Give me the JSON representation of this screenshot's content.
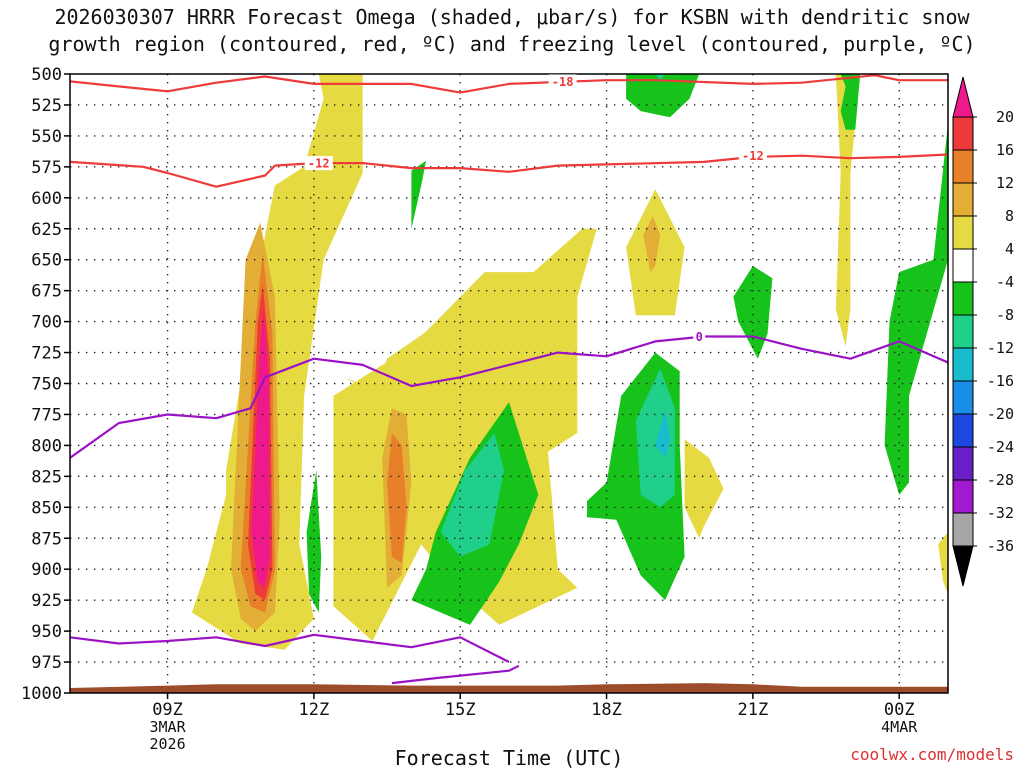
{
  "chart_data": {
    "type": "time-height contour",
    "title_line1": "2026030307 HRRR Forecast Omega (shaded, μbar/s) for KSBN with dendritic snow",
    "title_line2": "growth region (contoured, red, ºC) and freezing level (contoured, purple, ºC)",
    "xlabel": "Forecast Time (UTC)",
    "credit": "coolwx.com/models",
    "y_levels": [
      500,
      525,
      550,
      575,
      600,
      625,
      650,
      675,
      700,
      725,
      750,
      775,
      800,
      825,
      850,
      875,
      900,
      925,
      950,
      975,
      1000
    ],
    "ylim": [
      500,
      1000
    ],
    "x_hours_range": [
      7,
      25
    ],
    "x_ticks": [
      {
        "hour": 9,
        "lines": [
          "09Z",
          "3MAR",
          "2026"
        ]
      },
      {
        "hour": 12,
        "lines": [
          "12Z"
        ]
      },
      {
        "hour": 15,
        "lines": [
          "15Z"
        ]
      },
      {
        "hour": 18,
        "lines": [
          "18Z"
        ]
      },
      {
        "hour": 21,
        "lines": [
          "21Z"
        ]
      },
      {
        "hour": 24,
        "lines": [
          "00Z",
          "4MAR"
        ]
      }
    ],
    "colorbar": {
      "labels": [
        "20",
        "16",
        "12",
        "8",
        "4",
        "-4",
        "-8",
        "-12",
        "-16",
        "-20",
        "-24",
        "-28",
        "-32",
        "-36"
      ],
      "bins": [
        {
          "lo": 20,
          "hi": 24,
          "color": "#ee1a8c"
        },
        {
          "lo": 16,
          "hi": 20,
          "color": "#ee3a3a"
        },
        {
          "lo": 12,
          "hi": 16,
          "color": "#e8802a"
        },
        {
          "lo": 8,
          "hi": 12,
          "color": "#e3ae36"
        },
        {
          "lo": 4,
          "hi": 8,
          "color": "#e6da43"
        },
        {
          "lo": -4,
          "hi": 4,
          "color": "#ffffff"
        },
        {
          "lo": -8,
          "hi": -4,
          "color": "#17c21b"
        },
        {
          "lo": -12,
          "hi": -8,
          "color": "#1fcf8a"
        },
        {
          "lo": -16,
          "hi": -12,
          "color": "#18bccc"
        },
        {
          "lo": -20,
          "hi": -16,
          "color": "#1a8ee6"
        },
        {
          "lo": -24,
          "hi": -20,
          "color": "#1c48de"
        },
        {
          "lo": -28,
          "hi": -24,
          "color": "#6a1ec8"
        },
        {
          "lo": -32,
          "hi": -28,
          "color": "#a11ad0"
        },
        {
          "lo": -36,
          "hi": -32,
          "color": "#a6a6a6"
        }
      ]
    },
    "contour_labels": {
      "dgz_top": "-18",
      "dgz_bottom": "-12",
      "freezing": "0"
    },
    "dgz_top_line": [
      [
        7,
        506
      ],
      [
        8.5,
        512
      ],
      [
        9,
        514
      ],
      [
        10,
        507
      ],
      [
        11,
        502
      ],
      [
        12,
        508
      ],
      [
        14,
        508
      ],
      [
        15,
        515
      ],
      [
        16,
        508
      ],
      [
        18,
        505
      ],
      [
        19,
        505
      ],
      [
        21,
        508
      ],
      [
        22,
        507
      ],
      [
        23.5,
        501
      ],
      [
        24,
        505
      ],
      [
        25,
        505
      ]
    ],
    "dgz_bottom_line": [
      [
        7,
        571
      ],
      [
        8.5,
        575
      ],
      [
        9,
        580
      ],
      [
        10,
        591
      ],
      [
        11,
        582
      ],
      [
        11.2,
        574
      ],
      [
        12,
        572
      ],
      [
        13,
        572
      ],
      [
        14,
        576
      ],
      [
        15,
        576
      ],
      [
        16,
        579
      ],
      [
        17,
        574
      ],
      [
        18,
        573
      ],
      [
        20,
        571
      ],
      [
        21,
        567
      ],
      [
        22,
        566
      ],
      [
        23,
        568
      ],
      [
        24,
        567
      ],
      [
        25,
        565
      ]
    ],
    "freezing_line": [
      [
        7,
        810
      ],
      [
        8,
        782
      ],
      [
        9,
        775
      ],
      [
        10,
        778
      ],
      [
        10.7,
        770
      ],
      [
        11,
        745
      ],
      [
        12,
        730
      ],
      [
        13,
        735
      ],
      [
        14,
        752
      ],
      [
        15,
        745
      ],
      [
        16,
        735
      ],
      [
        17,
        725
      ],
      [
        18,
        728
      ],
      [
        19,
        716
      ],
      [
        20,
        712
      ],
      [
        21,
        712
      ],
      [
        22,
        722
      ],
      [
        23,
        730
      ],
      [
        24,
        716
      ],
      [
        25,
        733
      ]
    ],
    "freezing_line_low": [
      [
        7,
        955
      ],
      [
        8,
        960
      ],
      [
        9,
        958
      ],
      [
        10,
        955
      ],
      [
        11,
        962
      ],
      [
        12,
        953
      ],
      [
        13,
        958
      ],
      [
        14,
        963
      ],
      [
        15,
        955
      ],
      [
        16,
        975
      ]
    ],
    "freezing_line_sfc": [
      [
        13.6,
        992
      ],
      [
        14.5,
        988
      ],
      [
        16,
        982
      ],
      [
        16.2,
        978
      ]
    ],
    "terrain": [
      [
        7,
        996
      ],
      [
        9,
        994
      ],
      [
        10,
        993
      ],
      [
        12,
        993
      ],
      [
        14,
        994
      ],
      [
        16,
        994
      ],
      [
        17,
        994
      ],
      [
        18,
        993
      ],
      [
        20,
        992
      ],
      [
        21,
        993
      ],
      [
        22,
        995
      ],
      [
        25,
        995
      ]
    ],
    "shaded_regions": [
      {
        "value": 6,
        "polygon": [
          [
            10.2,
            820
          ],
          [
            11.0,
            630
          ],
          [
            11.2,
            590
          ],
          [
            11.8,
            575
          ],
          [
            12.2,
            520
          ],
          [
            12.1,
            500
          ],
          [
            13.0,
            500
          ],
          [
            13.0,
            580
          ],
          [
            12.2,
            650
          ],
          [
            11.8,
            760
          ],
          [
            11.7,
            880
          ],
          [
            12.0,
            940
          ],
          [
            11.4,
            965
          ],
          [
            10.5,
            960
          ],
          [
            9.5,
            935
          ],
          [
            9.8,
            900
          ],
          [
            10.2,
            840
          ]
        ]
      },
      {
        "value": 6,
        "polygon": [
          [
            12.4,
            760
          ],
          [
            14.0,
            720
          ],
          [
            15.5,
            660
          ],
          [
            16.5,
            660
          ],
          [
            17.5,
            625
          ],
          [
            17.8,
            625
          ],
          [
            17.4,
            680
          ],
          [
            17.4,
            790
          ],
          [
            16.8,
            805
          ],
          [
            17.0,
            900
          ],
          [
            17.4,
            915
          ],
          [
            15.8,
            945
          ],
          [
            14.8,
            910
          ],
          [
            14.2,
            880
          ],
          [
            13.2,
            958
          ],
          [
            12.4,
            930
          ]
        ]
      },
      {
        "value": 6,
        "polygon": [
          [
            12.6,
            745
          ],
          [
            13.3,
            755
          ],
          [
            13.5,
            730
          ],
          [
            14.6,
            700
          ],
          [
            15.0,
            690
          ],
          [
            15.8,
            678
          ],
          [
            16.3,
            675
          ],
          [
            16.0,
            690
          ],
          [
            14.5,
            720
          ],
          [
            13.5,
            745
          ],
          [
            13.4,
            760
          ]
        ]
      },
      {
        "value": 6,
        "polygon": [
          [
            18.4,
            640
          ],
          [
            19.0,
            593
          ],
          [
            19.6,
            640
          ],
          [
            19.4,
            695
          ],
          [
            18.6,
            695
          ]
        ]
      },
      {
        "value": 6,
        "polygon": [
          [
            19.6,
            795
          ],
          [
            20.1,
            810
          ],
          [
            20.4,
            835
          ],
          [
            20.0,
            865
          ],
          [
            19.9,
            875
          ],
          [
            19.6,
            850
          ]
        ]
      },
      {
        "value": 6,
        "polygon": [
          [
            22.7,
            500
          ],
          [
            23.2,
            500
          ],
          [
            23.0,
            580
          ],
          [
            23.0,
            690
          ],
          [
            22.9,
            720
          ],
          [
            22.7,
            690
          ],
          [
            22.8,
            580
          ]
        ]
      },
      {
        "value": 6,
        "polygon": [
          [
            24.8,
            880
          ],
          [
            25,
            870
          ],
          [
            25,
            920
          ],
          [
            24.9,
            910
          ]
        ]
      },
      {
        "value": 10,
        "polygon": [
          [
            10.3,
            900
          ],
          [
            10.6,
            650
          ],
          [
            10.9,
            620
          ],
          [
            11.2,
            680
          ],
          [
            11.3,
            860
          ],
          [
            11.2,
            935
          ],
          [
            10.8,
            950
          ],
          [
            10.5,
            940
          ]
        ]
      },
      {
        "value": 10,
        "polygon": [
          [
            13.4,
            810
          ],
          [
            13.6,
            770
          ],
          [
            13.9,
            775
          ],
          [
            14.0,
            830
          ],
          [
            13.8,
            905
          ],
          [
            13.5,
            915
          ]
        ]
      },
      {
        "value": 10,
        "polygon": [
          [
            18.75,
            630
          ],
          [
            18.95,
            615
          ],
          [
            19.1,
            630
          ],
          [
            19.0,
            655
          ],
          [
            18.9,
            660
          ]
        ]
      },
      {
        "value": 14,
        "polygon": [
          [
            10.5,
            900
          ],
          [
            10.8,
            700
          ],
          [
            10.95,
            645
          ],
          [
            11.15,
            710
          ],
          [
            11.2,
            900
          ],
          [
            11.0,
            935
          ],
          [
            10.7,
            930
          ]
        ]
      },
      {
        "value": 14,
        "polygon": [
          [
            13.5,
            830
          ],
          [
            13.6,
            790
          ],
          [
            13.8,
            800
          ],
          [
            13.9,
            850
          ],
          [
            13.8,
            895
          ],
          [
            13.6,
            890
          ]
        ]
      },
      {
        "value": 18,
        "polygon": [
          [
            10.65,
            880
          ],
          [
            10.85,
            700
          ],
          [
            10.95,
            670
          ],
          [
            11.1,
            730
          ],
          [
            11.15,
            900
          ],
          [
            11.0,
            925
          ],
          [
            10.8,
            920
          ]
        ]
      },
      {
        "value": 22,
        "polygon": [
          [
            10.72,
            870
          ],
          [
            10.88,
            730
          ],
          [
            10.97,
            690
          ],
          [
            11.08,
            750
          ],
          [
            11.1,
            890
          ],
          [
            10.98,
            915
          ],
          [
            10.85,
            910
          ]
        ]
      },
      {
        "value": -6,
        "polygon": [
          [
            14.0,
            578
          ],
          [
            14.3,
            570
          ],
          [
            14.2,
            590
          ],
          [
            14.0,
            625
          ]
        ]
      },
      {
        "value": -6,
        "polygon": [
          [
            11.85,
            870
          ],
          [
            12.05,
            820
          ],
          [
            12.15,
            890
          ],
          [
            12.1,
            935
          ],
          [
            11.9,
            920
          ]
        ]
      },
      {
        "value": -6,
        "polygon": [
          [
            14.5,
            870
          ],
          [
            15.2,
            810
          ],
          [
            16.0,
            765
          ],
          [
            16.6,
            840
          ],
          [
            16.2,
            880
          ],
          [
            15.8,
            910
          ],
          [
            15.2,
            945
          ],
          [
            14.0,
            925
          ],
          [
            14.3,
            900
          ]
        ]
      },
      {
        "value": -6,
        "polygon": [
          [
            17.6,
            845
          ],
          [
            18.0,
            830
          ],
          [
            18.3,
            760
          ],
          [
            19.0,
            725
          ],
          [
            19.5,
            740
          ],
          [
            19.5,
            800
          ],
          [
            19.6,
            890
          ],
          [
            19.2,
            925
          ],
          [
            18.7,
            905
          ],
          [
            18.2,
            860
          ],
          [
            17.6,
            858
          ]
        ]
      },
      {
        "value": -6,
        "polygon": [
          [
            21.0,
            655
          ],
          [
            21.4,
            665
          ],
          [
            21.3,
            710
          ],
          [
            21.1,
            730
          ],
          [
            20.7,
            700
          ],
          [
            20.6,
            680
          ]
        ]
      },
      {
        "value": -6,
        "polygon": [
          [
            22.9,
            510
          ],
          [
            22.8,
            500
          ],
          [
            23.2,
            500
          ],
          [
            23.1,
            545
          ],
          [
            22.9,
            545
          ],
          [
            22.8,
            530
          ]
        ]
      },
      {
        "value": -6,
        "polygon": [
          [
            24.0,
            660
          ],
          [
            24.7,
            650
          ],
          [
            25,
            540
          ],
          [
            25,
            650
          ],
          [
            24.2,
            760
          ],
          [
            24.2,
            830
          ],
          [
            24.0,
            840
          ],
          [
            23.7,
            800
          ],
          [
            23.8,
            700
          ]
        ]
      },
      {
        "value": -6,
        "polygon": [
          [
            18.4,
            500
          ],
          [
            19.9,
            500
          ],
          [
            19.7,
            520
          ],
          [
            19.3,
            535
          ],
          [
            18.7,
            530
          ],
          [
            18.4,
            520
          ]
        ]
      },
      {
        "value": -10,
        "polygon": [
          [
            14.6,
            870
          ],
          [
            15.1,
            820
          ],
          [
            15.7,
            790
          ],
          [
            15.9,
            820
          ],
          [
            15.6,
            880
          ],
          [
            15.0,
            890
          ]
        ]
      },
      {
        "value": -10,
        "polygon": [
          [
            18.6,
            780
          ],
          [
            19.1,
            738
          ],
          [
            19.4,
            770
          ],
          [
            19.4,
            840
          ],
          [
            19.1,
            850
          ],
          [
            18.7,
            840
          ]
        ]
      },
      {
        "value": -10,
        "polygon": [
          [
            19.0,
            500
          ],
          [
            19.2,
            500
          ],
          [
            19.1,
            505
          ]
        ]
      },
      {
        "value": -14,
        "polygon": [
          [
            19.0,
            800
          ],
          [
            19.2,
            772
          ],
          [
            19.3,
            795
          ],
          [
            19.2,
            810
          ]
        ]
      }
    ]
  }
}
